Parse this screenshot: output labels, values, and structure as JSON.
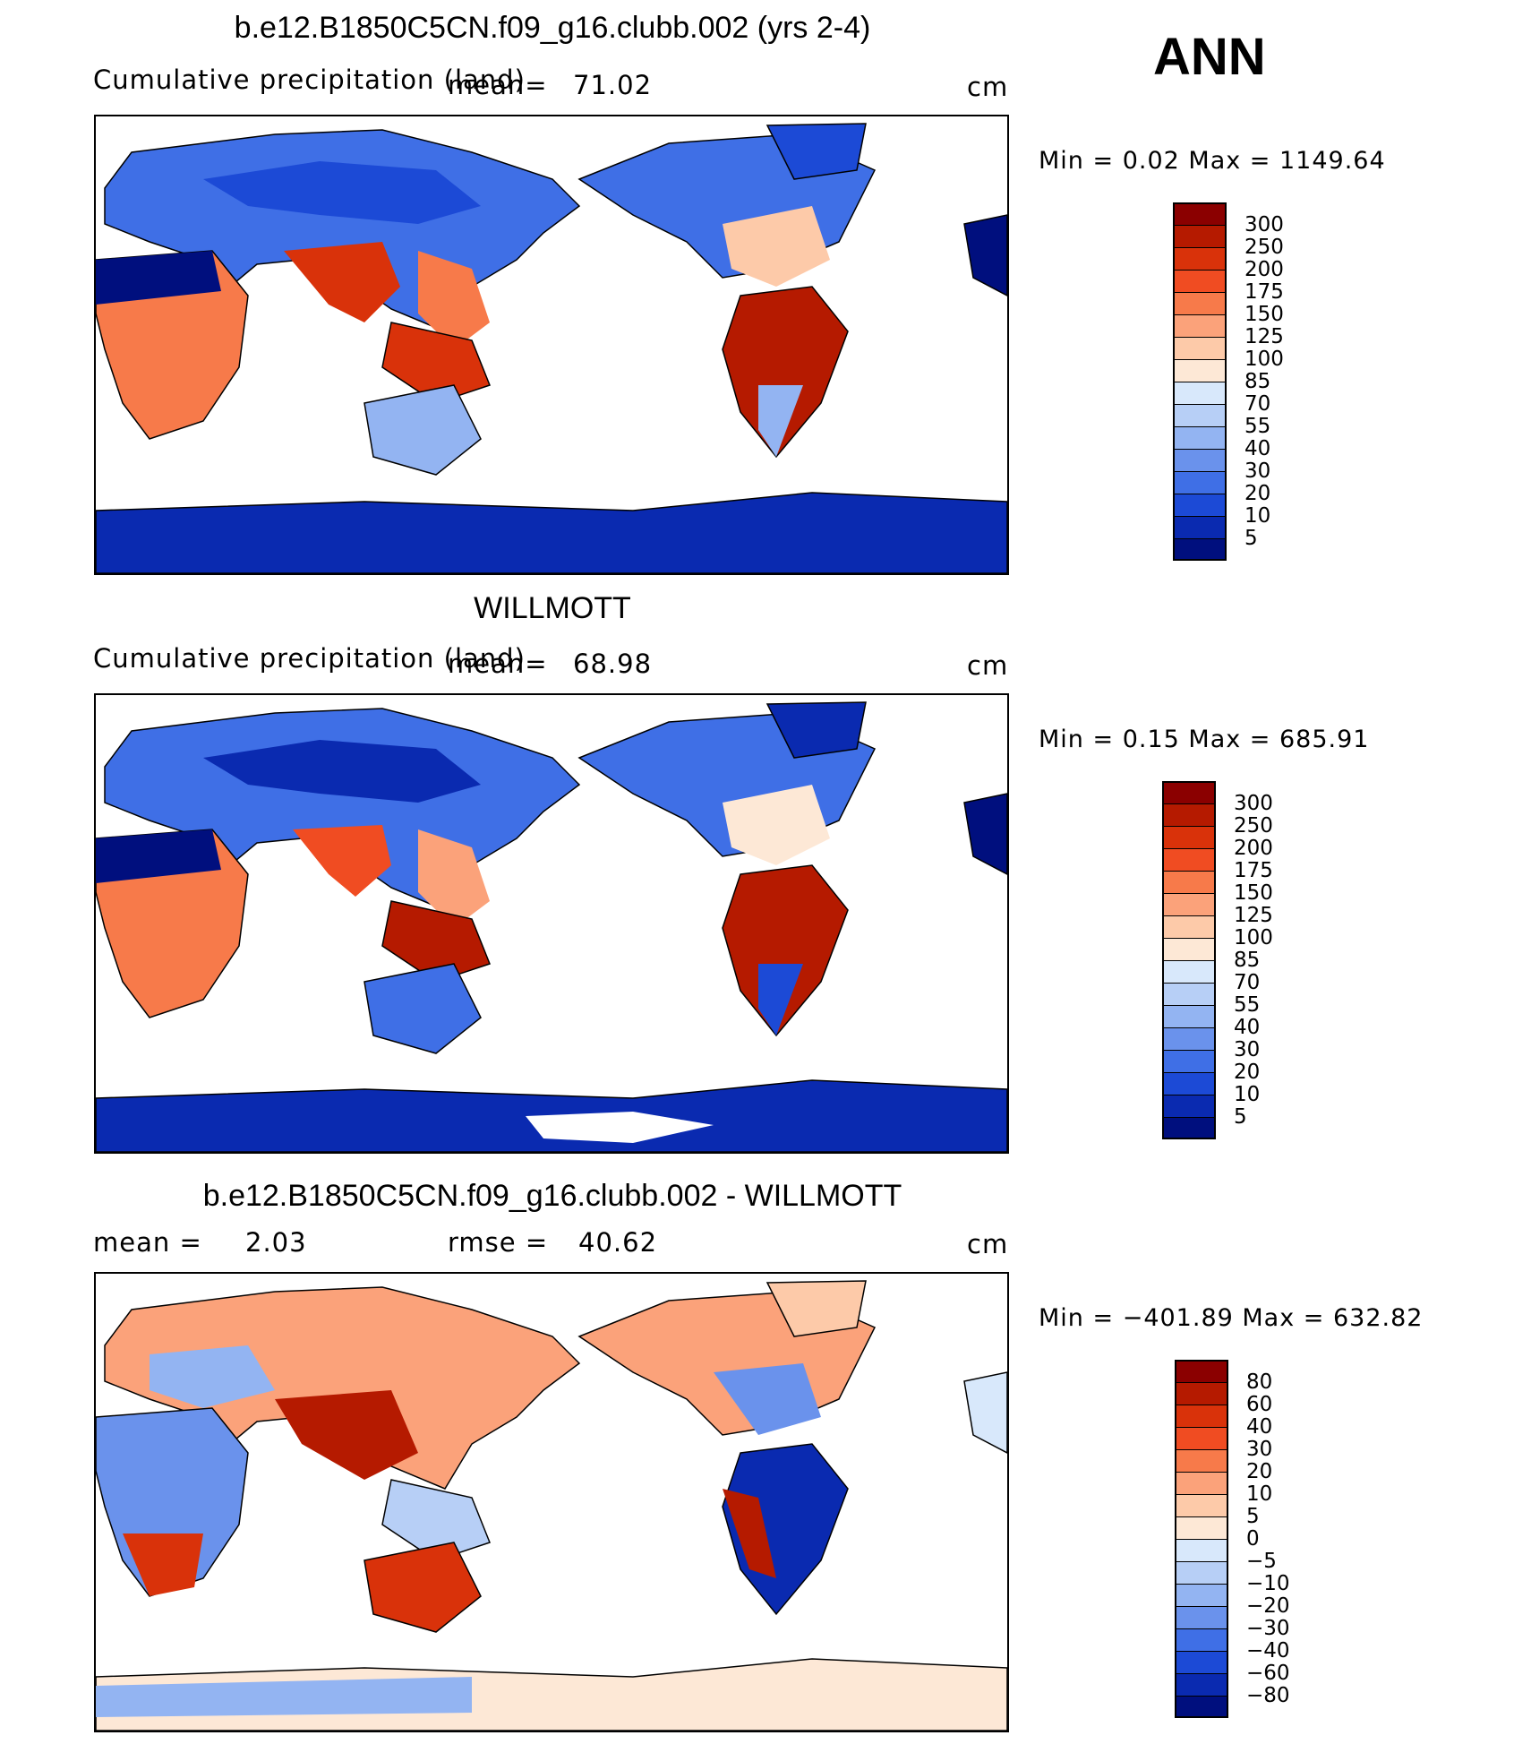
{
  "season": "ANN",
  "units": "cm",
  "panels": [
    {
      "title": "b.e12.B1850C5CN.f09_g16.clubb.002 (yrs 2-4)",
      "subtitle": "Cumulative precipitation (land)",
      "mean_label": "mean=",
      "mean_value": "71.02",
      "units": "cm",
      "minmax": "Min  =    0.02  Max  =  1149.64",
      "colorbar": {
        "labels": [
          "300",
          "250",
          "200",
          "175",
          "150",
          "125",
          "100",
          "85",
          "70",
          "55",
          "40",
          "30",
          "20",
          "10",
          "5"
        ],
        "colors": [
          "#8b0000",
          "#b51a00",
          "#d9320a",
          "#f04c22",
          "#f77a4a",
          "#fba27a",
          "#fdcaa9",
          "#fde8d6",
          "#d8e8fb",
          "#b7cff6",
          "#93b4f2",
          "#6a92ec",
          "#3f6fe6",
          "#1c4ad6",
          "#0a2ab0",
          "#000f7e"
        ]
      }
    },
    {
      "title": "WILLMOTT",
      "subtitle": "Cumulative precipitation (land)",
      "mean_label": "mean=",
      "mean_value": "68.98",
      "units": "cm",
      "minmax": "Min  =    0.15  Max  =  685.91",
      "colorbar": {
        "labels": [
          "300",
          "250",
          "200",
          "175",
          "150",
          "125",
          "100",
          "85",
          "70",
          "55",
          "40",
          "30",
          "20",
          "10",
          "5"
        ],
        "colors": [
          "#8b0000",
          "#b51a00",
          "#d9320a",
          "#f04c22",
          "#f77a4a",
          "#fba27a",
          "#fdcaa9",
          "#fde8d6",
          "#d8e8fb",
          "#b7cff6",
          "#93b4f2",
          "#6a92ec",
          "#3f6fe6",
          "#1c4ad6",
          "#0a2ab0",
          "#000f7e"
        ]
      }
    },
    {
      "title": "b.e12.B1850C5CN.f09_g16.clubb.002 - WILLMOTT",
      "mean_label": "mean  =",
      "mean_value": "2.03",
      "rmse_label": "rmse  =",
      "rmse_value": "40.62",
      "units": "cm",
      "minmax": "Min  = −401.89  Max  =  632.82",
      "colorbar": {
        "labels": [
          "80",
          "60",
          "40",
          "30",
          "20",
          "10",
          "5",
          "0",
          "−5",
          "−10",
          "−20",
          "−30",
          "−40",
          "−60",
          "−80"
        ],
        "colors": [
          "#8b0000",
          "#b51a00",
          "#d9320a",
          "#f04c22",
          "#f77a4a",
          "#fba27a",
          "#fdcaa9",
          "#fde8d6",
          "#d8e8fb",
          "#b7cff6",
          "#93b4f2",
          "#6a92ec",
          "#3f6fe6",
          "#1c4ad6",
          "#0a2ab0",
          "#000f7e"
        ]
      }
    }
  ]
}
